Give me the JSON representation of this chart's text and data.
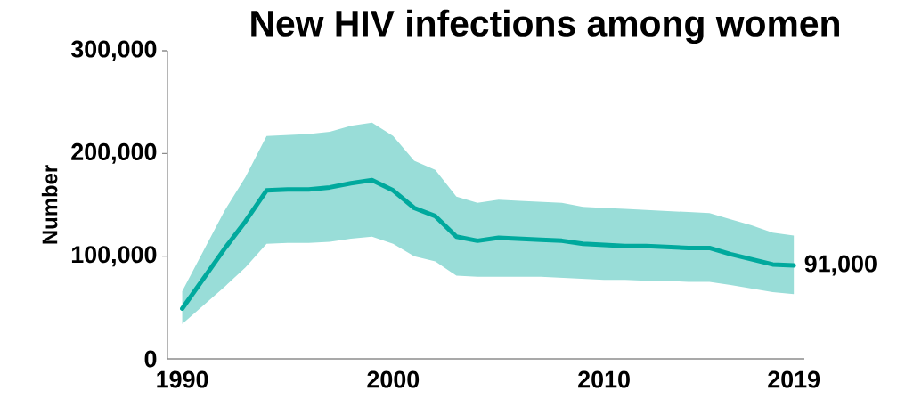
{
  "chart_data": {
    "type": "line",
    "title": "New HIV infections among women",
    "ylabel": "Number",
    "x": [
      1990,
      1991,
      1992,
      1993,
      1994,
      1995,
      1996,
      1997,
      1998,
      1999,
      2000,
      2001,
      2002,
      2003,
      2004,
      2005,
      2006,
      2007,
      2008,
      2009,
      2010,
      2011,
      2012,
      2013,
      2014,
      2015,
      2016,
      2017,
      2018,
      2019
    ],
    "series": [
      {
        "color": "#00a99d",
        "values": [
          49000,
          78000,
          107000,
          134000,
          164000,
          165000,
          165000,
          167000,
          171000,
          174000,
          164000,
          147000,
          139000,
          119000,
          115000,
          118000,
          117000,
          116000,
          115000,
          112000,
          111000,
          110000,
          110000,
          109000,
          108000,
          108000,
          102000,
          97000,
          92000,
          91000
        ],
        "lower": [
          34000,
          52000,
          70000,
          89000,
          112000,
          113000,
          113000,
          114000,
          117000,
          119000,
          112000,
          100000,
          95000,
          81000,
          80000,
          80000,
          80000,
          80000,
          79000,
          78000,
          77000,
          77000,
          76000,
          76000,
          75000,
          75000,
          72000,
          68500,
          65000,
          63000
        ],
        "upper": [
          66000,
          105000,
          144000,
          177000,
          217000,
          218000,
          219000,
          221000,
          227000,
          230000,
          217000,
          193000,
          184000,
          158000,
          152000,
          155000,
          154000,
          153000,
          152000,
          148000,
          147000,
          146000,
          145000,
          144000,
          143000,
          142000,
          136000,
          130000,
          123000,
          120000
        ]
      }
    ],
    "xlim": [
      1989.3,
      2019.5
    ],
    "ylim": [
      0,
      300000
    ],
    "xticks": [
      1990,
      2000,
      2010,
      2019
    ],
    "yticks": [
      0,
      {
        "value": 100000,
        "label": "100,000"
      },
      {
        "value": 200000,
        "label": "200,000"
      },
      {
        "value": 300000,
        "label": "300,000"
      }
    ],
    "grid": false,
    "annotations": [
      {
        "text": "91,000",
        "x": 2019,
        "y": 91000
      }
    ]
  }
}
